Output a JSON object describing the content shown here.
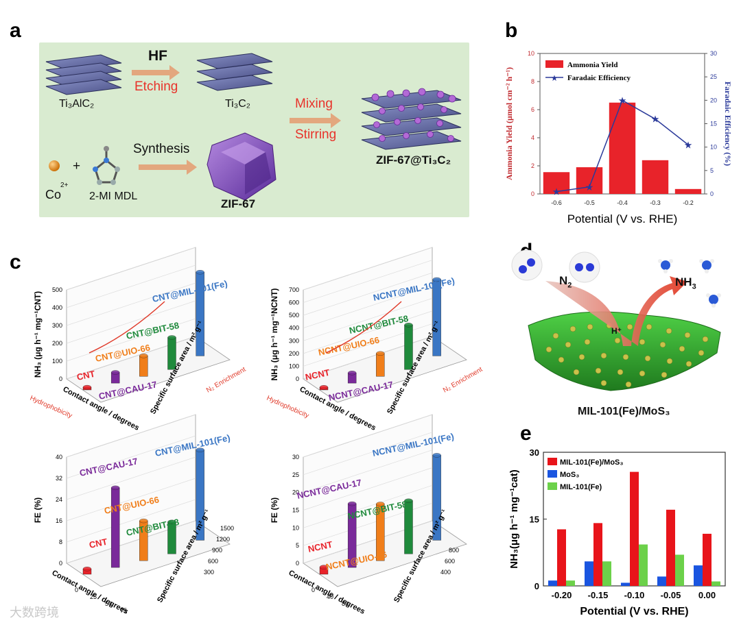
{
  "panel_labels": {
    "a": "a",
    "b": "b",
    "c": "c",
    "d": "d",
    "e": "e"
  },
  "panel_a": {
    "hf": "HF",
    "etching": "Etching",
    "ti3alc2": "Ti₃AlC₂",
    "ti3c2": "Ti₃C₂",
    "mixing": "Mixing",
    "stirring": "Stirring",
    "product": "ZIF-67@Ti₃C₂",
    "synthesis": "Synthesis",
    "plus": "+",
    "co": "Co",
    "co_charge": "2+",
    "mi": "2-MI MDL",
    "zif": "ZIF-67"
  },
  "panel_d": {
    "n2": "N",
    "n2_sub": "2",
    "nh3": "NH",
    "nh3_sub": "3",
    "hplus": "H⁺",
    "caption": "MIL-101(Fe)/MoS₃"
  },
  "watermark": "大数跨境",
  "chart_data": [
    {
      "id": "b",
      "type": "bar",
      "categories": [
        "-0.6",
        "-0.5",
        "-0.4",
        "-0.3",
        "-0.2"
      ],
      "series": [
        {
          "name": "Ammonia Yield",
          "type": "bar",
          "axis": "left",
          "color": "#e8232a",
          "values": [
            1.55,
            1.9,
            6.5,
            2.4,
            0.35
          ]
        },
        {
          "name": "Faradaic Efficiency",
          "type": "line",
          "axis": "right",
          "color": "#2b3a9a",
          "values": [
            0.5,
            1.5,
            20,
            16,
            10.5
          ]
        }
      ],
      "xlabel": "Potential (V vs. RHE)",
      "ylabel": "Ammonia Yield (μmol cm⁻² h⁻¹)",
      "y2label": "Faradaic Efficiency (%)",
      "ylim": [
        0,
        10
      ],
      "y2lim": [
        0,
        30
      ],
      "yticks": [
        "0",
        "2",
        "4",
        "6",
        "8",
        "10"
      ],
      "y2ticks": [
        "0",
        "5",
        "10",
        "15",
        "20",
        "25",
        "30"
      ],
      "legend": "top-left"
    },
    {
      "id": "c1",
      "type": "bar",
      "categories": [
        "CNT",
        "CNT@CAU-17",
        "CNT@UIO-66",
        "CNT@BIT-58",
        "CNT@MIL-101(Fe)"
      ],
      "values": [
        15,
        60,
        115,
        180,
        470
      ],
      "colors": [
        "#e8232a",
        "#7a2a9a",
        "#f07e1a",
        "#1f8a3c",
        "#3a76c4"
      ],
      "zlabel": "NH₃ (μg h⁻¹ mg⁻¹CNT)",
      "zticks": [
        "0",
        "100",
        "200",
        "300",
        "400",
        "500"
      ],
      "xlabel": "Contact angle / degrees",
      "ylabel": "Specific surface area / m² g⁻¹",
      "arrow_x": "Hydrophobicity",
      "arrow_y": "N₂ Enrichment"
    },
    {
      "id": "c2",
      "type": "bar",
      "categories": [
        "NCNT",
        "NCNT@CAU-17",
        "NCNT@UIO-66",
        "NCNT@BIT-58",
        "NCNT@MIL-101(Fe)"
      ],
      "values": [
        20,
        80,
        180,
        350,
        600
      ],
      "colors": [
        "#e8232a",
        "#7a2a9a",
        "#f07e1a",
        "#1f8a3c",
        "#3a76c4"
      ],
      "zlabel": "NH₃ (μg h⁻¹ mg⁻¹NCNT)",
      "zticks": [
        "0",
        "100",
        "200",
        "300",
        "400",
        "500",
        "600",
        "700"
      ],
      "xlabel": "Contact angle / degrees",
      "ylabel": "Specific surface area / m² g⁻¹",
      "arrow_x": "Hydrophobicity",
      "arrow_y": "N₂ Enrichment"
    },
    {
      "id": "c3",
      "type": "bar",
      "categories": [
        "CNT",
        "CNT@CAU-17",
        "CNT@UIO-66",
        "CNT@BIT-58",
        "CNT@MIL-101(Fe)"
      ],
      "values": [
        2,
        30,
        15,
        12,
        34
      ],
      "colors": [
        "#e8232a",
        "#7a2a9a",
        "#f07e1a",
        "#1f8a3c",
        "#3a76c4"
      ],
      "zlabel": "FE (%)",
      "zticks": [
        "0",
        "8",
        "16",
        "24",
        "32",
        "40"
      ],
      "xticks": [
        "0",
        "25",
        "50",
        "75"
      ],
      "yticks": [
        "300",
        "600",
        "900",
        "1200",
        "1500"
      ],
      "xlabel": "Contact angle / degrees",
      "ylabel": "Specific surface area / m² g⁻¹"
    },
    {
      "id": "c4",
      "type": "bar",
      "categories": [
        "NCNT",
        "NCNT@CAU-17",
        "NCNT@UIO-66",
        "NCNT@BIT-58",
        "NCNT@MIL-101(Fe)"
      ],
      "values": [
        2,
        18,
        16,
        15,
        24
      ],
      "colors": [
        "#e8232a",
        "#7a2a9a",
        "#f07e1a",
        "#1f8a3c",
        "#3a76c4"
      ],
      "zlabel": "FE (%)",
      "zticks": [
        "0",
        "5",
        "10",
        "15",
        "20",
        "25",
        "30"
      ],
      "xticks": [
        "0",
        "40",
        "80"
      ],
      "yticks": [
        "400",
        "600",
        "800"
      ],
      "xlabel": "Contact angle / degrees",
      "ylabel": "Specific surface area / m² g⁻¹"
    },
    {
      "id": "e",
      "type": "bar",
      "categories": [
        "-0.20",
        "-0.15",
        "-0.10",
        "-0.05",
        "0.00"
      ],
      "series": [
        {
          "name": "MIL-101(Fe)/MoS₃",
          "color": "#e8141a",
          "values": [
            12.7,
            14.1,
            25.6,
            17.1,
            11.7
          ]
        },
        {
          "name": "MoS₃",
          "color": "#1a55e0",
          "values": [
            1.2,
            5.5,
            0.7,
            2.1,
            4.6
          ]
        },
        {
          "name": "MIL-101(Fe)",
          "color": "#6cd14a",
          "values": [
            1.2,
            5.5,
            9.3,
            7.0,
            1.0
          ]
        }
      ],
      "xlabel": "Potential (V vs. RHE)",
      "ylabel": "NH₃(μg h⁻¹ mg⁻¹cat)",
      "ylim": [
        0,
        30
      ],
      "yticks": [
        "0",
        "15",
        "30"
      ],
      "legend": "top-left"
    }
  ]
}
